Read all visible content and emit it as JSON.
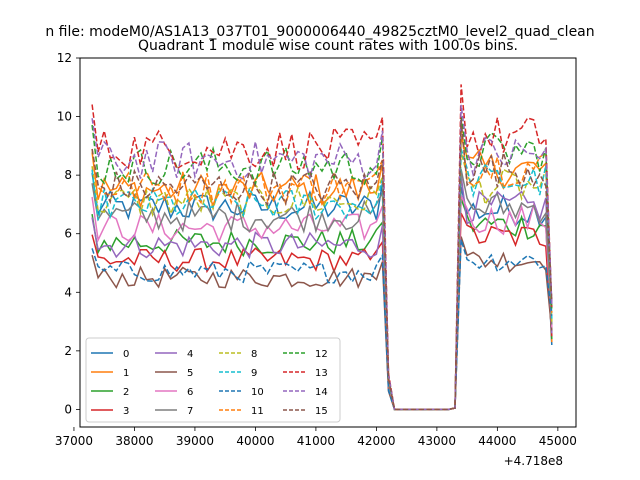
{
  "figure": {
    "suptitle": "n file: modeM0/AS1A13_037T01_9000006440_49825cztM0_level2_quad_clean",
    "title": "Quadrant 1 module wise count rates with 100.0s bins.",
    "x_offset_label": "+4.718e8"
  },
  "chart_data": {
    "type": "line",
    "title": "Quadrant 1 module wise count rates with 100.0s bins.",
    "xlabel": "",
    "ylabel": "",
    "x_offset": 471800000,
    "xlim": [
      37100,
      45300
    ],
    "ylim": [
      -0.6,
      12
    ],
    "xticks": [
      37000,
      38000,
      39000,
      40000,
      41000,
      42000,
      43000,
      44000,
      45000
    ],
    "xtick_labels": [
      "37000",
      "38000",
      "39000",
      "40000",
      "41000",
      "42000",
      "43000",
      "44000",
      "45000"
    ],
    "yticks": [
      0,
      2,
      4,
      6,
      8,
      10,
      12
    ],
    "ytick_labels": [
      "0",
      "2",
      "4",
      "6",
      "8",
      "10",
      "12"
    ],
    "grid": false,
    "legend_position": "lower-left",
    "legend_columns": 4,
    "x_grid": {
      "segment1_start": 37300,
      "segment1_end": 42100,
      "segment2_start": 43300,
      "segment2_end": 44900,
      "step": 100,
      "gap_points": [
        [
          42200,
          0.9
        ],
        [
          42300,
          0.0
        ],
        [
          43200,
          0.0
        ]
      ]
    },
    "series": [
      {
        "name": "0",
        "color": "#1f77b4",
        "dashed": false,
        "mean1": 6.9,
        "mean2": 6.8,
        "start2": 7.6
      },
      {
        "name": "1",
        "color": "#ff7f0e",
        "dashed": false,
        "mean1": 7.5,
        "mean2": 8.2,
        "start2": 9.3
      },
      {
        "name": "2",
        "color": "#2ca02c",
        "dashed": false,
        "mean1": 5.7,
        "mean2": 6.3,
        "start2": 7.2
      },
      {
        "name": "3",
        "color": "#d62728",
        "dashed": false,
        "mean1": 5.1,
        "mean2": 5.9,
        "start2": 6.7
      },
      {
        "name": "4",
        "color": "#9467bd",
        "dashed": false,
        "mean1": 5.6,
        "mean2": 6.9,
        "start2": 8.0
      },
      {
        "name": "5",
        "color": "#8c564b",
        "dashed": false,
        "mean1": 4.5,
        "mean2": 5.1,
        "start2": 5.9
      },
      {
        "name": "6",
        "color": "#e377c2",
        "dashed": false,
        "mean1": 6.2,
        "mean2": 6.5,
        "start2": 7.3
      },
      {
        "name": "7",
        "color": "#7f7f7f",
        "dashed": false,
        "mean1": 6.6,
        "mean2": 6.9,
        "start2": 8.2
      },
      {
        "name": "8",
        "color": "#bcbd22",
        "dashed": true,
        "mean1": 7.1,
        "mean2": 7.6,
        "start2": 8.8
      },
      {
        "name": "9",
        "color": "#17becf",
        "dashed": true,
        "mean1": 7.0,
        "mean2": 7.8,
        "start2": 8.9
      },
      {
        "name": "10",
        "color": "#1f77b4",
        "dashed": true,
        "mean1": 4.7,
        "mean2": 5.1,
        "start2": 5.8
      },
      {
        "name": "11",
        "color": "#ff7f0e",
        "dashed": true,
        "mean1": 7.6,
        "mean2": 8.3,
        "start2": 9.7
      },
      {
        "name": "12",
        "color": "#2ca02c",
        "dashed": true,
        "mean1": 8.3,
        "mean2": 8.8,
        "start2": 10.0
      },
      {
        "name": "13",
        "color": "#d62728",
        "dashed": true,
        "mean1": 8.9,
        "mean2": 9.3,
        "start2": 11.1
      },
      {
        "name": "14",
        "color": "#9467bd",
        "dashed": true,
        "mean1": 8.5,
        "mean2": 8.7,
        "start2": 10.4
      },
      {
        "name": "15",
        "color": "#8c564b",
        "dashed": true,
        "mean1": 7.6,
        "mean2": 8.2,
        "start2": 9.9
      }
    ]
  }
}
